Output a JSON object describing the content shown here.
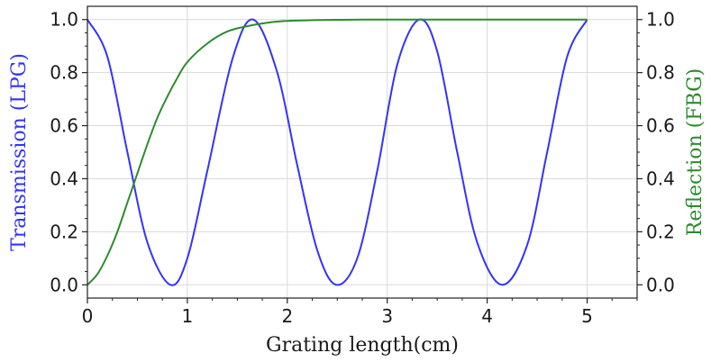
{
  "chart_data": {
    "type": "line",
    "xlabel": "Grating length(cm)",
    "ylabel_left": "Transmission (LPG)",
    "ylabel_right": "Reflection (FBG)",
    "xlim": [
      0,
      5.5
    ],
    "ylim": [
      -0.05,
      1.05
    ],
    "x_ticks": [
      0,
      1,
      2,
      3,
      4,
      5
    ],
    "x_tick_labels": [
      "0",
      "1",
      "2",
      "3",
      "4",
      "5"
    ],
    "y_ticks": [
      0.0,
      0.2,
      0.4,
      0.6,
      0.8,
      1.0
    ],
    "y_tick_labels_left": [
      "0.0",
      "0.2",
      "0.4",
      "0.6",
      "0.8",
      "1.0"
    ],
    "y_tick_labels_right": [
      "0.0",
      "0.2",
      "0.4",
      "0.6",
      "0.8",
      "1.0"
    ],
    "grid": true,
    "series": [
      {
        "axis": "left",
        "color": "#3333ff",
        "x": [
          0,
          0.2,
          0.4,
          0.6,
          0.83,
          1.0,
          1.2,
          1.45,
          1.66,
          1.9,
          2.1,
          2.3,
          2.49,
          2.7,
          2.9,
          3.1,
          3.32,
          3.5,
          3.7,
          3.9,
          4.15,
          4.4,
          4.6,
          4.8,
          5.0
        ],
        "y": [
          1.0,
          0.86,
          0.5,
          0.16,
          0.0,
          0.1,
          0.43,
          0.85,
          1.0,
          0.8,
          0.45,
          0.13,
          0.0,
          0.1,
          0.43,
          0.83,
          1.0,
          0.88,
          0.5,
          0.16,
          0.0,
          0.15,
          0.5,
          0.86,
          1.0
        ]
      },
      {
        "axis": "right",
        "color": "#2e8b2e",
        "x": [
          0,
          0.1,
          0.2,
          0.3,
          0.4,
          0.5,
          0.6,
          0.7,
          0.8,
          0.9,
          1.0,
          1.2,
          1.4,
          1.6,
          1.8,
          2.0,
          2.5,
          3.0,
          3.5,
          4.0,
          4.5,
          5.0
        ],
        "y": [
          0.0,
          0.04,
          0.11,
          0.2,
          0.31,
          0.42,
          0.53,
          0.63,
          0.71,
          0.78,
          0.84,
          0.91,
          0.955,
          0.975,
          0.988,
          0.995,
          0.999,
          1.0,
          1.0,
          1.0,
          1.0,
          1.0
        ]
      }
    ]
  }
}
